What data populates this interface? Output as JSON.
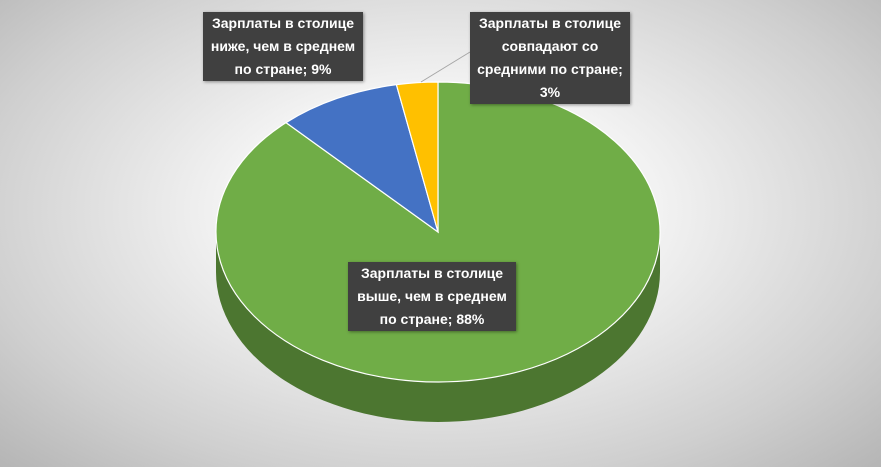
{
  "chart_data": {
    "type": "pie3d",
    "values": [
      88,
      9,
      3
    ],
    "value_labels": [
      "Зарплаты в столице выше, чем в среднем по стране; 88%",
      "Зарплаты в столице ниже, чем в среднем по стране; 9%",
      "Зарплаты в столице совпадают со средними по стране; 3%"
    ],
    "colors": [
      "#70ad47",
      "#4472c4",
      "#ffc000"
    ]
  }
}
